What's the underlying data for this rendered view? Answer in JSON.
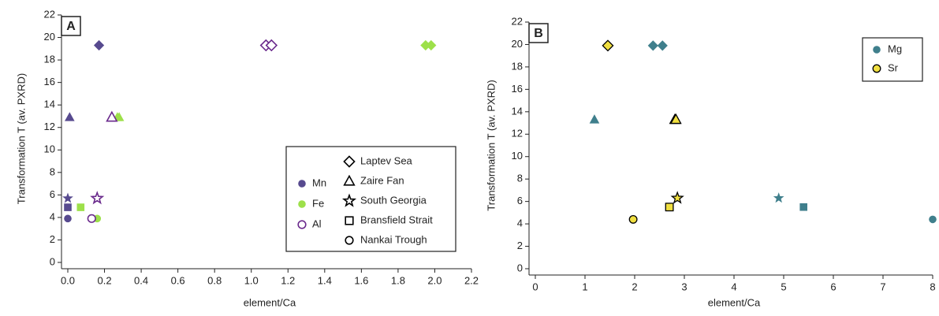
{
  "chart_data": [
    {
      "type": "scatter",
      "panel_label": "A",
      "xlabel": "element/Ca",
      "ylabel": "Transformation T (av. PXRD)",
      "xlim": [
        0,
        2.2
      ],
      "ylim": [
        0,
        22
      ],
      "xticks": [
        {
          "value": 0,
          "label": "0.0"
        },
        0.2,
        0.4,
        0.6,
        0.8,
        {
          "value": 1,
          "label": "1.0"
        },
        1.2,
        1.4,
        1.6,
        1.8,
        {
          "value": 2,
          "label": "2.0"
        },
        2.2
      ],
      "yticks": [
        0,
        2,
        4,
        6,
        8,
        10,
        12,
        14,
        16,
        18,
        20,
        22
      ],
      "legend": "lower right",
      "series": [
        {
          "name": "Mn",
          "color": "#574a8f",
          "filled": true,
          "x": [
            0.17,
            0.01,
            0.0,
            0.0,
            0.0
          ],
          "values": [
            19.3,
            12.9,
            5.7,
            4.9,
            3.9
          ],
          "markers": [
            "diamond",
            "triangle",
            "star",
            "square",
            "circle"
          ]
        },
        {
          "name": "Fe",
          "color": "#9de04a",
          "filled": true,
          "x": [
            1.95,
            1.98,
            0.27,
            0.28,
            0.16,
            0.07,
            0.16
          ],
          "values": [
            19.3,
            19.3,
            12.9,
            12.9,
            5.7,
            4.9,
            3.9
          ],
          "markers": [
            "diamond",
            "diamond",
            "triangle",
            "triangle",
            "star",
            "square",
            "circle"
          ]
        },
        {
          "name": "Al",
          "color": "#6a2a8c",
          "filled": false,
          "x": [
            1.08,
            1.11,
            0.24,
            0.16,
            0.13
          ],
          "values": [
            19.3,
            19.3,
            12.9,
            5.7,
            3.9
          ],
          "markers": [
            "diamond",
            "diamond",
            "triangle",
            "star",
            "circle"
          ]
        }
      ],
      "shape_legend": [
        {
          "name": "Laptev Sea",
          "marker": "diamond"
        },
        {
          "name": "Zaire Fan",
          "marker": "triangle"
        },
        {
          "name": "South Georgia",
          "marker": "star"
        },
        {
          "name": "Bransfield Strait",
          "marker": "square"
        },
        {
          "name": "Nankai Trough",
          "marker": "circle"
        }
      ]
    },
    {
      "type": "scatter",
      "panel_label": "B",
      "xlabel": "element/Ca",
      "ylabel": "Transformation T (av. PXRD)",
      "xlim": [
        0,
        8
      ],
      "ylim": [
        0,
        22
      ],
      "xticks": [
        0,
        1,
        2,
        3,
        4,
        5,
        6,
        7,
        8
      ],
      "yticks": [
        0,
        2,
        4,
        6,
        8,
        10,
        12,
        14,
        16,
        18,
        20,
        22
      ],
      "legend": "upper right",
      "series": [
        {
          "name": "Mg",
          "color": "#3f7f8c",
          "filled": true,
          "x": [
            2.37,
            2.56,
            1.19,
            4.9,
            5.4,
            8.0
          ],
          "values": [
            19.9,
            19.9,
            13.3,
            6.3,
            5.5,
            4.4
          ],
          "markers": [
            "diamond",
            "diamond",
            "triangle",
            "star",
            "square",
            "circle"
          ]
        },
        {
          "name": "Sr",
          "color": "#f0df40",
          "filled": true,
          "edgecolor": "#000000",
          "x": [
            1.46,
            2.81,
            2.83,
            2.86,
            2.7,
            1.97
          ],
          "values": [
            19.9,
            13.3,
            13.3,
            6.3,
            5.5,
            4.4
          ],
          "markers": [
            "diamond",
            "triangle",
            "triangle",
            "star",
            "square",
            "circle"
          ]
        }
      ]
    }
  ]
}
